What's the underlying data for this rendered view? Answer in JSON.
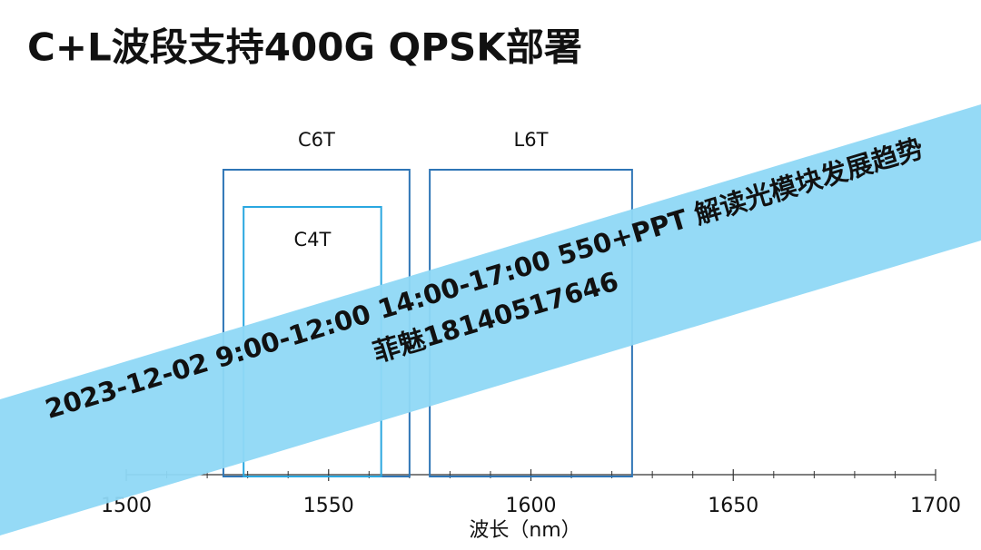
{
  "chart_data": {
    "type": "bands",
    "title": "C+L波段支持400G QPSK部署",
    "xlabel": "波长（nm）",
    "xlim": [
      1500,
      1700
    ],
    "xticks": [
      1500,
      1550,
      1600,
      1650,
      1700
    ],
    "xminorticks": [
      1510,
      1520,
      1530,
      1540,
      1560,
      1570,
      1580,
      1590,
      1610,
      1620,
      1630,
      1640,
      1660,
      1670,
      1680,
      1690
    ],
    "bands": [
      {
        "name": "C6T",
        "start": 1524,
        "end": 1570,
        "color": "#2e75b6"
      },
      {
        "name": "C4T",
        "start": 1529,
        "end": 1563,
        "color": "#2aa7e0"
      },
      {
        "name": "L6T",
        "start": 1575,
        "end": 1625,
        "color": "#2e75b6"
      }
    ],
    "annotations": [
      "2023-12-02 9:00-12:00  14:00-17:00  550+PPT 解读光模块发展趋势",
      "菲魅18140517646"
    ]
  }
}
